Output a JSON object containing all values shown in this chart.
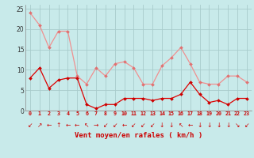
{
  "hours": [
    0,
    1,
    2,
    3,
    4,
    5,
    6,
    7,
    8,
    9,
    10,
    11,
    12,
    13,
    14,
    15,
    16,
    17,
    18,
    19,
    20,
    21,
    22,
    23
  ],
  "rafales_vals": [
    24,
    21,
    15.5,
    19.5,
    19.5,
    8.5,
    6.5,
    10.5,
    8.5,
    11.5,
    12,
    10.5,
    6.5,
    6.5,
    11,
    13,
    15.5,
    11.5,
    7,
    6.5,
    6.5,
    8.5,
    8.5,
    7
  ],
  "moyen_vals": [
    8,
    10.5,
    5.5,
    7.5,
    8,
    8,
    1.5,
    0.5,
    1.5,
    1.5,
    3,
    3,
    3,
    2.5,
    3,
    3,
    4,
    7,
    4,
    2,
    2.5,
    1.5,
    3,
    3
  ],
  "xlabel": "Vent moyen/en rafales ( km/h )",
  "ylim": [
    0,
    26
  ],
  "yticks": [
    0,
    5,
    10,
    15,
    20,
    25
  ],
  "bg_color": "#c8eaea",
  "grid_color": "#a8cccc",
  "line_color_rafales": "#f09090",
  "line_color_moyen": "#dd0000",
  "marker_color_rafales": "#e07070",
  "marker_color_moyen": "#cc0000",
  "arrow_chars": [
    "↙",
    "↗",
    "←",
    "↑",
    "←",
    "←",
    "↖",
    "→",
    "↙",
    "↙",
    "←",
    "↙",
    "↙",
    "↙",
    "↓",
    "↓",
    "↖",
    "←",
    "↓",
    "↓",
    "↓",
    "↓",
    "↘",
    "↙"
  ]
}
